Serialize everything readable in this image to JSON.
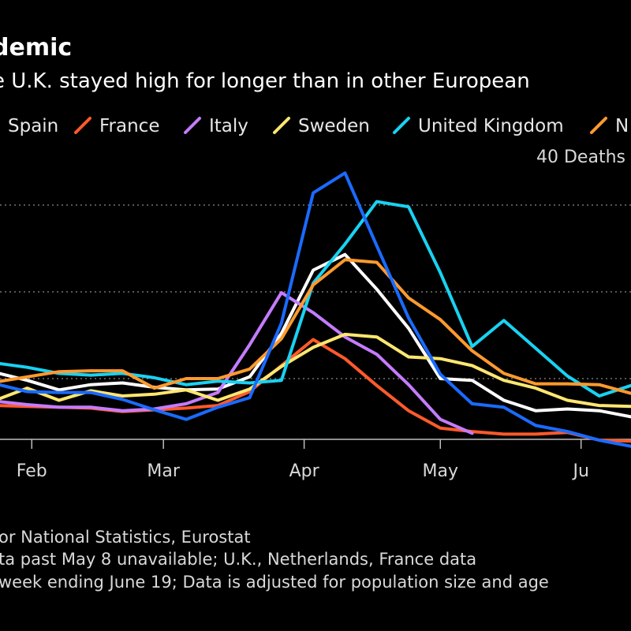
{
  "header": {
    "title": "demic",
    "subtitle": "e U.K. stayed high for longer than in other European"
  },
  "unit_label": "40 Deaths",
  "footnotes": [
    "or National Statistics, Eurostat",
    "ta past May 8 unavailable; U.K., Netherlands, France data",
    "week ending June 19; Data is adjusted for population size and age"
  ],
  "colors": {
    "background": "#000000",
    "gridline": "#8a8a8a",
    "axis": "#bdbdbd"
  },
  "chart_data": {
    "type": "line",
    "x_axis_type": "date",
    "x_ticks": [
      {
        "label": "Feb",
        "date": "2020-02-01"
      },
      {
        "label": "Mar",
        "date": "2020-03-01"
      },
      {
        "label": "Apr",
        "date": "2020-04-01"
      },
      {
        "label": "May",
        "date": "2020-05-01"
      },
      {
        "label": "Ju",
        "date": "2020-06-01"
      }
    ],
    "xlim": [
      "2020-01-25",
      "2020-06-12"
    ],
    "ylim": [
      13,
      43
    ],
    "y_gridlines": [
      20,
      30,
      40
    ],
    "legend_position": "top",
    "grid": true,
    "series": [
      {
        "name": "Spain",
        "color": "#ffffff",
        "points": [
          [
            "2020-01-24",
            20.7
          ],
          [
            "2020-01-31",
            19.8
          ],
          [
            "2020-02-07",
            18.7
          ],
          [
            "2020-02-14",
            19.3
          ],
          [
            "2020-02-21",
            19.5
          ],
          [
            "2020-02-28",
            19.0
          ],
          [
            "2020-03-06",
            18.7
          ],
          [
            "2020-03-13",
            18.8
          ],
          [
            "2020-03-20",
            20.2
          ],
          [
            "2020-03-27",
            25.2
          ],
          [
            "2020-04-03",
            32.5
          ],
          [
            "2020-04-10",
            34.3
          ],
          [
            "2020-04-17",
            30.3
          ],
          [
            "2020-04-24",
            25.8
          ],
          [
            "2020-05-01",
            20.0
          ],
          [
            "2020-05-08",
            19.8
          ],
          [
            "2020-05-15",
            17.5
          ],
          [
            "2020-05-22",
            16.3
          ],
          [
            "2020-05-29",
            16.5
          ],
          [
            "2020-06-05",
            16.3
          ],
          [
            "2020-06-12",
            15.6
          ]
        ]
      },
      {
        "name": "France",
        "color": "#ff5a2b",
        "points": [
          [
            "2020-01-24",
            16.9
          ],
          [
            "2020-01-31",
            16.8
          ],
          [
            "2020-02-07",
            16.7
          ],
          [
            "2020-02-14",
            16.6
          ],
          [
            "2020-02-21",
            16.2
          ],
          [
            "2020-02-28",
            16.4
          ],
          [
            "2020-03-06",
            16.6
          ],
          [
            "2020-03-13",
            16.9
          ],
          [
            "2020-03-20",
            18.5
          ],
          [
            "2020-03-27",
            21.5
          ],
          [
            "2020-04-03",
            24.5
          ],
          [
            "2020-04-10",
            22.3
          ],
          [
            "2020-04-17",
            19.2
          ],
          [
            "2020-04-24",
            16.3
          ],
          [
            "2020-05-01",
            14.3
          ],
          [
            "2020-05-08",
            13.9
          ],
          [
            "2020-05-15",
            13.6
          ],
          [
            "2020-05-22",
            13.6
          ],
          [
            "2020-05-29",
            13.8
          ],
          [
            "2020-06-05",
            12.9
          ],
          [
            "2020-06-12",
            12.8
          ]
        ]
      },
      {
        "name": "Italy",
        "color": "#c47cff",
        "points": [
          [
            "2020-01-24",
            17.4
          ],
          [
            "2020-01-31",
            17.0
          ],
          [
            "2020-02-07",
            16.7
          ],
          [
            "2020-02-14",
            16.7
          ],
          [
            "2020-02-21",
            16.3
          ],
          [
            "2020-02-28",
            16.5
          ],
          [
            "2020-03-06",
            17.1
          ],
          [
            "2020-03-13",
            18.4
          ],
          [
            "2020-03-20",
            23.9
          ],
          [
            "2020-03-27",
            29.9
          ],
          [
            "2020-04-03",
            27.6
          ],
          [
            "2020-04-10",
            24.8
          ],
          [
            "2020-04-17",
            22.8
          ],
          [
            "2020-04-24",
            19.3
          ],
          [
            "2020-05-01",
            15.3
          ],
          [
            "2020-05-08",
            13.7
          ]
        ]
      },
      {
        "name": "Sweden",
        "color": "#ffe770",
        "points": [
          [
            "2020-01-24",
            17.5
          ],
          [
            "2020-01-31",
            18.9
          ],
          [
            "2020-02-07",
            17.5
          ],
          [
            "2020-02-14",
            18.6
          ],
          [
            "2020-02-21",
            18.0
          ],
          [
            "2020-02-28",
            18.2
          ],
          [
            "2020-03-06",
            18.7
          ],
          [
            "2020-03-13",
            17.5
          ],
          [
            "2020-03-20",
            18.8
          ],
          [
            "2020-03-27",
            21.4
          ],
          [
            "2020-04-03",
            23.6
          ],
          [
            "2020-04-10",
            25.1
          ],
          [
            "2020-04-17",
            24.8
          ],
          [
            "2020-04-24",
            22.5
          ],
          [
            "2020-05-01",
            22.3
          ],
          [
            "2020-05-08",
            21.5
          ],
          [
            "2020-05-15",
            19.8
          ],
          [
            "2020-05-22",
            18.9
          ],
          [
            "2020-05-29",
            17.5
          ],
          [
            "2020-06-05",
            16.9
          ],
          [
            "2020-06-12",
            16.8
          ]
        ]
      },
      {
        "name": "United Kingdom",
        "color": "#19d2f2",
        "points": [
          [
            "2020-01-24",
            21.8
          ],
          [
            "2020-01-31",
            21.3
          ],
          [
            "2020-02-07",
            20.6
          ],
          [
            "2020-02-14",
            20.4
          ],
          [
            "2020-02-21",
            20.6
          ],
          [
            "2020-02-28",
            20.1
          ],
          [
            "2020-03-06",
            19.3
          ],
          [
            "2020-03-13",
            19.7
          ],
          [
            "2020-03-20",
            19.5
          ],
          [
            "2020-03-27",
            19.8
          ],
          [
            "2020-04-03",
            31.0
          ],
          [
            "2020-04-10",
            35.5
          ],
          [
            "2020-04-17",
            40.4
          ],
          [
            "2020-04-24",
            39.8
          ],
          [
            "2020-05-01",
            32.2
          ],
          [
            "2020-05-08",
            23.7
          ],
          [
            "2020-05-15",
            26.7
          ],
          [
            "2020-05-22",
            23.5
          ],
          [
            "2020-05-29",
            20.3
          ],
          [
            "2020-06-05",
            18.0
          ],
          [
            "2020-06-12",
            19.2
          ]
        ]
      },
      {
        "name": "N",
        "color": "#ff9a2e",
        "points": [
          [
            "2020-01-24",
            19.6
          ],
          [
            "2020-01-31",
            20.2
          ],
          [
            "2020-02-07",
            20.8
          ],
          [
            "2020-02-14",
            20.9
          ],
          [
            "2020-02-21",
            20.9
          ],
          [
            "2020-02-28",
            18.9
          ],
          [
            "2020-03-06",
            20.0
          ],
          [
            "2020-03-13",
            20.0
          ],
          [
            "2020-03-20",
            21.1
          ],
          [
            "2020-03-27",
            24.6
          ],
          [
            "2020-04-03",
            30.8
          ],
          [
            "2020-04-10",
            33.7
          ],
          [
            "2020-04-17",
            33.4
          ],
          [
            "2020-04-24",
            29.3
          ],
          [
            "2020-05-01",
            26.8
          ],
          [
            "2020-05-08",
            23.2
          ],
          [
            "2020-05-15",
            20.6
          ],
          [
            "2020-05-22",
            19.4
          ],
          [
            "2020-05-29",
            19.4
          ],
          [
            "2020-06-05",
            19.3
          ],
          [
            "2020-06-12",
            18.3
          ]
        ]
      },
      {
        "name": "",
        "color": "#1a6bff",
        "points": [
          [
            "2020-01-24",
            19.4
          ],
          [
            "2020-01-31",
            18.5
          ],
          [
            "2020-02-07",
            18.4
          ],
          [
            "2020-02-14",
            18.4
          ],
          [
            "2020-02-21",
            17.6
          ],
          [
            "2020-02-28",
            16.4
          ],
          [
            "2020-03-06",
            15.3
          ],
          [
            "2020-03-13",
            16.7
          ],
          [
            "2020-03-20",
            17.8
          ],
          [
            "2020-03-27",
            26.4
          ],
          [
            "2020-04-03",
            41.4
          ],
          [
            "2020-04-10",
            43.7
          ],
          [
            "2020-04-17",
            35.3
          ],
          [
            "2020-04-24",
            27.0
          ],
          [
            "2020-05-01",
            20.5
          ],
          [
            "2020-05-08",
            17.1
          ],
          [
            "2020-05-15",
            16.7
          ],
          [
            "2020-05-22",
            14.6
          ],
          [
            "2020-05-29",
            13.9
          ],
          [
            "2020-06-05",
            12.9
          ],
          [
            "2020-06-12",
            12.2
          ]
        ]
      }
    ]
  }
}
